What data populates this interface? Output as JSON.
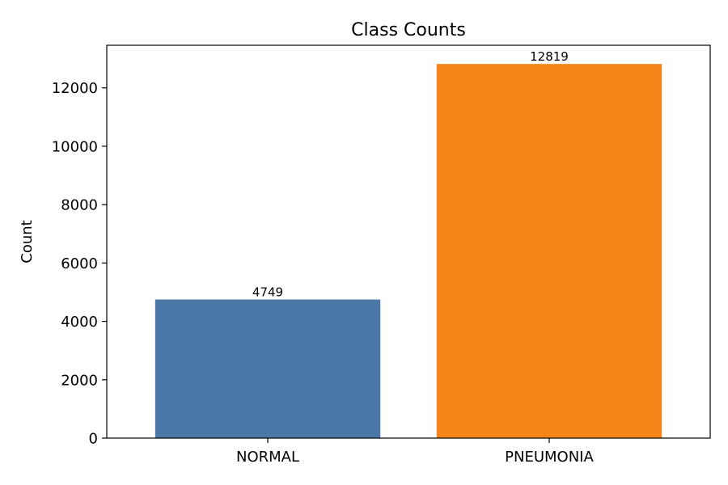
{
  "chart_data": {
    "type": "bar",
    "title": "Class Counts",
    "xlabel": "",
    "ylabel": "Count",
    "categories": [
      "NORMAL",
      "PNEUMONIA"
    ],
    "values": [
      4749,
      12819
    ],
    "data_labels": [
      "4749",
      "12819"
    ],
    "bar_colors": [
      "#4c78a8",
      "#f58518"
    ],
    "ylim": [
      0,
      13460
    ],
    "yticks": [
      0,
      2000,
      4000,
      6000,
      8000,
      10000,
      12000
    ],
    "ytick_labels": [
      "0",
      "2000",
      "4000",
      "6000",
      "8000",
      "10000",
      "12000"
    ],
    "grid": false,
    "legend": "none"
  }
}
